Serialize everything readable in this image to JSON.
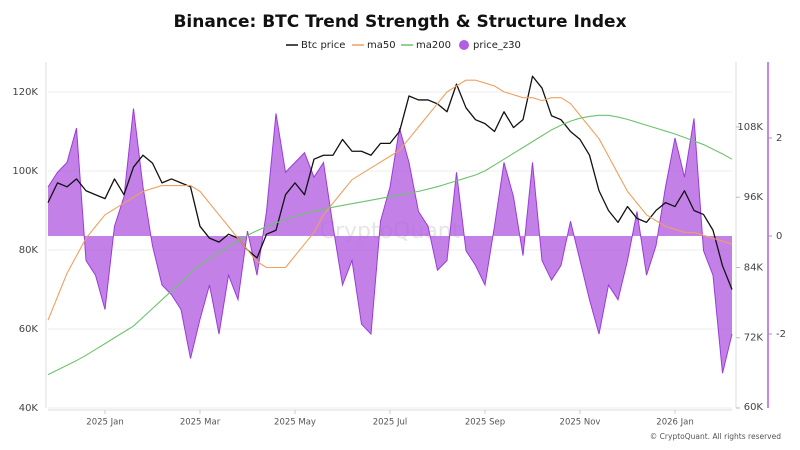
{
  "chart_data": {
    "type": "line",
    "title": "Binance: BTC Trend Strength & Structure Index",
    "watermark": "CryptoQuant",
    "credit": "© CryptoQuant. All rights reserved",
    "grid": true,
    "categories": [
      null,
      null,
      null,
      null,
      null,
      null,
      "2025 Jan",
      null,
      null,
      null,
      null,
      null,
      null,
      null,
      null,
      null,
      "2025 Mar",
      null,
      null,
      null,
      null,
      null,
      null,
      null,
      null,
      null,
      "2025 May",
      null,
      null,
      null,
      null,
      null,
      null,
      null,
      null,
      null,
      "2025 Jul",
      null,
      null,
      null,
      null,
      null,
      null,
      null,
      null,
      null,
      "2025 Sep",
      null,
      null,
      null,
      null,
      null,
      null,
      null,
      null,
      null,
      "2025 Nov",
      null,
      null,
      null,
      null,
      null,
      null,
      null,
      null,
      null,
      "2026 Jan",
      null,
      null,
      null,
      null,
      null,
      null
    ],
    "ylim": [
      40000,
      127600
    ],
    "yticks": [
      {
        "value": 40000,
        "label": "40K"
      },
      {
        "value": 60000,
        "label": "60K"
      },
      {
        "value": 80000,
        "label": "80K"
      },
      {
        "value": 100000,
        "label": "100K"
      },
      {
        "value": 120000,
        "label": "120K"
      }
    ],
    "y2lim": [
      60000,
      119100
    ],
    "y2ticks": [
      {
        "value": 60000,
        "label": "60K"
      },
      {
        "value": 72000,
        "label": "72K"
      },
      {
        "value": 84000,
        "label": "84K"
      },
      {
        "value": 96000,
        "label": "96K"
      },
      {
        "value": 108000,
        "label": "108K"
      }
    ],
    "y3lim": [
      -3.51,
      3.55
    ],
    "y3ticks": [
      -2,
      0,
      2
    ],
    "series": [
      {
        "name": "Btc price",
        "color": "#111111",
        "axis": "y",
        "type": "line",
        "values": [
          92000,
          97000,
          96000,
          98000,
          95000,
          94000,
          93000,
          98000,
          94000,
          101000,
          104000,
          102000,
          97000,
          98000,
          97000,
          96000,
          86000,
          83000,
          82000,
          84000,
          83000,
          80000,
          78000,
          84000,
          85000,
          94000,
          97000,
          94000,
          103000,
          104000,
          104000,
          108000,
          105000,
          105000,
          104000,
          107000,
          107000,
          110000,
          119000,
          118000,
          118000,
          117000,
          115000,
          122000,
          116000,
          113000,
          112000,
          110000,
          115000,
          111000,
          113000,
          124000,
          121000,
          114000,
          113000,
          110000,
          108000,
          104000,
          95000,
          90000,
          87000,
          91000,
          88000,
          87000,
          90000,
          92000,
          91000,
          95000,
          90000,
          89000,
          85000,
          76000,
          70000
        ]
      },
      {
        "name": "ma50",
        "color": "#f0a060",
        "axis": "y2",
        "type": "line",
        "values": [
          75000,
          79000,
          83000,
          86000,
          89000,
          91000,
          93000,
          94000,
          95000,
          96000,
          97000,
          97500,
          98000,
          98000,
          98000,
          98000,
          97000,
          95000,
          93000,
          91000,
          89000,
          87000,
          85000,
          84000,
          84000,
          84000,
          86000,
          88000,
          90000,
          93000,
          95000,
          97000,
          99000,
          100000,
          101000,
          102000,
          103000,
          104000,
          106000,
          108000,
          110000,
          112000,
          114000,
          115000,
          116000,
          116000,
          115500,
          115000,
          114000,
          113500,
          113000,
          113000,
          112500,
          113000,
          113000,
          112000,
          110000,
          108000,
          106000,
          103000,
          100000,
          97000,
          95000,
          93000,
          92000,
          91000,
          90500,
          90000,
          90000,
          89500,
          89000,
          88500,
          88000
        ]
      },
      {
        "name": "ma200",
        "color": "#6cc36c",
        "axis": "y2",
        "type": "line",
        "values": [
          65700,
          66500,
          67300,
          68100,
          69000,
          70000,
          71000,
          72000,
          73000,
          74000,
          75500,
          77000,
          78500,
          80000,
          81500,
          83000,
          84500,
          85500,
          86500,
          87500,
          88500,
          89500,
          90300,
          91000,
          91600,
          92200,
          92700,
          93200,
          93600,
          94000,
          94300,
          94600,
          94900,
          95200,
          95500,
          95800,
          96100,
          96400,
          96700,
          97000,
          97400,
          97800,
          98300,
          98800,
          99300,
          99800,
          100500,
          101500,
          102500,
          103500,
          104500,
          105500,
          106500,
          107500,
          108300,
          109000,
          109500,
          109800,
          110000,
          110000,
          109700,
          109300,
          108800,
          108300,
          107800,
          107300,
          106800,
          106200,
          105600,
          105000,
          104200,
          103400,
          102500
        ]
      },
      {
        "name": "price_z30",
        "color": "#b25de2",
        "axis": "y3",
        "type": "area",
        "values": [
          1.0,
          1.3,
          1.5,
          2.2,
          -0.5,
          -0.8,
          -1.5,
          0.2,
          0.8,
          2.6,
          1.0,
          -0.2,
          -1.0,
          -1.2,
          -1.5,
          -2.5,
          -1.7,
          -1.0,
          -2.0,
          -0.8,
          -1.3,
          0.1,
          -0.8,
          0.5,
          2.5,
          1.3,
          1.5,
          1.7,
          1.2,
          1.5,
          0.2,
          -1.0,
          -0.5,
          -1.8,
          -2.0,
          0.3,
          1.0,
          2.2,
          1.5,
          0.5,
          0.2,
          -0.7,
          -0.5,
          1.3,
          -0.3,
          -0.6,
          -1.0,
          0.2,
          1.5,
          0.8,
          -0.4,
          1.5,
          -0.5,
          -0.9,
          -0.6,
          0.3,
          -0.5,
          -1.3,
          -2.0,
          -1.0,
          -1.3,
          -0.5,
          0.5,
          -0.8,
          -0.2,
          1.0,
          2.0,
          1.2,
          2.4,
          -0.3,
          -0.8,
          -2.8,
          -2.0
        ]
      }
    ]
  }
}
